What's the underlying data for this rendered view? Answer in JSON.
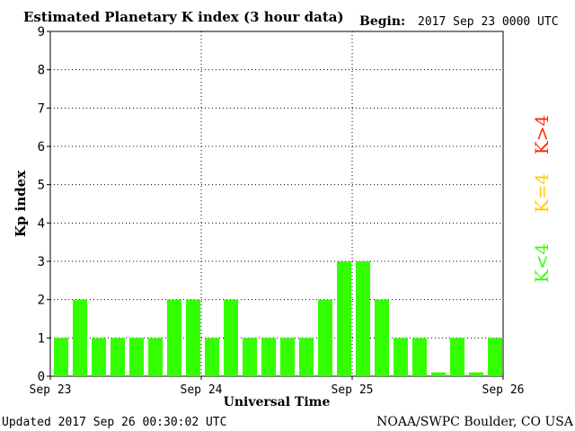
{
  "header": {
    "title": "Estimated Planetary K index (3 hour data)",
    "begin_label": "Begin:",
    "begin_value": "2017 Sep 23 0000 UTC"
  },
  "footer": {
    "updated": "Updated 2017 Sep 26 00:30:02 UTC",
    "source": "NOAA/SWPC Boulder, CO USA"
  },
  "legend": {
    "k_gt4": "K>4",
    "k_eq4": "K=4",
    "k_lt4": "K<4",
    "colors": {
      "k_gt4": "#ff2a00",
      "k_eq4": "#ffcc00",
      "k_lt4": "#33ff00"
    }
  },
  "chart_data": {
    "type": "bar",
    "title": "Estimated Planetary K index (3 hour data)",
    "xlabel": "Universal Time",
    "ylabel": "Kp index",
    "ylim": [
      0,
      9
    ],
    "yticks": [
      0,
      1,
      2,
      3,
      4,
      5,
      6,
      7,
      8,
      9
    ],
    "xticks": [
      "Sep 23",
      "Sep 24",
      "Sep 25",
      "Sep 26"
    ],
    "grid": true,
    "bar_color": "#33ff00",
    "values": [
      1,
      2,
      1,
      1,
      1,
      1,
      2,
      2,
      1,
      2,
      1,
      1,
      1,
      1,
      2,
      3,
      3,
      2,
      1,
      1,
      0.1,
      1,
      0.1,
      1
    ]
  }
}
